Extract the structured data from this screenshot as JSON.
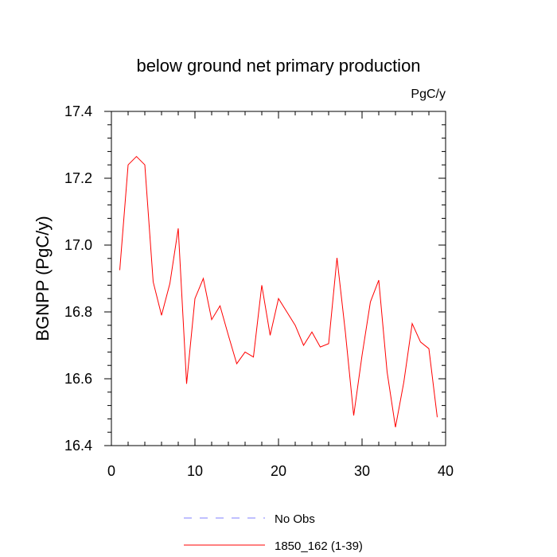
{
  "chart_data": {
    "type": "line",
    "title": "below ground net primary production",
    "units_label": "PgC/y",
    "xlabel": "",
    "ylabel": "BGNPP  (PgC/y)",
    "xlim": [
      0,
      40
    ],
    "ylim": [
      16.4,
      17.4
    ],
    "xticks": [
      0,
      10,
      20,
      30,
      40
    ],
    "xtick_labels": [
      "0",
      "10",
      "20",
      "30",
      "40"
    ],
    "yticks": [
      16.4,
      16.6,
      16.8,
      17.0,
      17.2,
      17.4
    ],
    "ytick_labels": [
      "16.4",
      "16.6",
      "16.8",
      "17.0",
      "17.2",
      "17.4"
    ],
    "grid": false,
    "legend_position": "bottom-center",
    "series": [
      {
        "name": "1850_162 (1-39)",
        "color": "#ff0000",
        "dash": "solid",
        "x": [
          1,
          2,
          3,
          4,
          5,
          6,
          7,
          8,
          9,
          10,
          11,
          12,
          13,
          14,
          15,
          16,
          17,
          18,
          19,
          20,
          21,
          22,
          23,
          24,
          25,
          26,
          27,
          28,
          29,
          30,
          31,
          32,
          33,
          34,
          35,
          36,
          37,
          38,
          39
        ],
        "values": [
          16.925,
          17.24,
          17.265,
          17.24,
          16.89,
          16.79,
          16.885,
          17.05,
          16.585,
          16.84,
          16.9,
          16.777,
          16.818,
          16.73,
          16.645,
          16.68,
          16.665,
          16.88,
          16.73,
          16.84,
          16.8,
          16.76,
          16.7,
          16.74,
          16.695,
          16.705,
          16.962,
          16.74,
          16.49,
          16.67,
          16.83,
          16.895,
          16.62,
          16.455,
          16.59,
          16.765,
          16.71,
          16.69,
          16.485
        ]
      }
    ],
    "legend": [
      {
        "name": "No Obs",
        "color": "#8080ff",
        "dash": "dashed"
      },
      {
        "name": "1850_162 (1-39)",
        "color": "#ff0000",
        "dash": "solid"
      }
    ]
  }
}
